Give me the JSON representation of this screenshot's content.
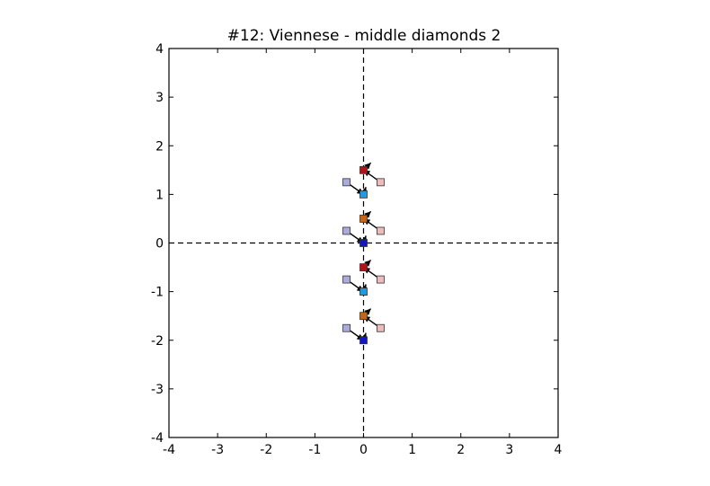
{
  "chart_data": {
    "type": "scatter",
    "title": "#12: Viennese - middle diamonds 2",
    "xlabel": "",
    "ylabel": "",
    "xlim": [
      -4,
      4
    ],
    "ylim": [
      -4,
      4
    ],
    "xticks": [
      -4,
      -3,
      -2,
      -1,
      0,
      1,
      2,
      3,
      4
    ],
    "yticks": [
      -4,
      -3,
      -2,
      -1,
      0,
      1,
      2,
      3,
      4
    ],
    "xtick_labels": [
      "-4",
      "-3",
      "-2",
      "-1",
      "0",
      "1",
      "2",
      "3",
      "4"
    ],
    "ytick_labels": [
      "-4",
      "-3",
      "-2",
      "-1",
      "0",
      "1",
      "2",
      "3",
      "4"
    ],
    "grid": false,
    "reference_lines": {
      "x": 0,
      "y": 0,
      "style": "dashed"
    },
    "points": [
      {
        "x": 0.0,
        "y": 1.5,
        "color": "#b01515"
      },
      {
        "x": 0.0,
        "y": 1.0,
        "color": "#1e9be0"
      },
      {
        "x": 0.0,
        "y": 0.5,
        "color": "#c86414"
      },
      {
        "x": 0.0,
        "y": 0.0,
        "color": "#1414c8"
      },
      {
        "x": 0.0,
        "y": -0.5,
        "color": "#b01515"
      },
      {
        "x": 0.0,
        "y": -1.0,
        "color": "#1e9be0"
      },
      {
        "x": 0.0,
        "y": -1.5,
        "color": "#c86414"
      },
      {
        "x": 0.0,
        "y": -2.0,
        "color": "#1414c8"
      },
      {
        "x": -0.35,
        "y": 1.25,
        "color": "#aaaadd"
      },
      {
        "x": 0.35,
        "y": 1.25,
        "color": "#eebbbb"
      },
      {
        "x": -0.35,
        "y": 0.25,
        "color": "#aaaadd"
      },
      {
        "x": 0.35,
        "y": 0.25,
        "color": "#eebbbb"
      },
      {
        "x": -0.35,
        "y": -0.75,
        "color": "#aaaadd"
      },
      {
        "x": 0.35,
        "y": -0.75,
        "color": "#eebbbb"
      },
      {
        "x": -0.35,
        "y": -1.75,
        "color": "#aaaadd"
      },
      {
        "x": 0.35,
        "y": -1.75,
        "color": "#eebbbb"
      }
    ],
    "arrows": [
      {
        "x1": -0.35,
        "y1": 1.25,
        "x2": 0.0,
        "y2": 1.0
      },
      {
        "x1": 0.35,
        "y1": 1.25,
        "x2": 0.0,
        "y2": 1.5
      },
      {
        "x1": 0.0,
        "y1": 1.0,
        "x2": 0.05,
        "y2": 1.15
      },
      {
        "x1": 0.0,
        "y1": 1.5,
        "x2": 0.15,
        "y2": 1.65
      },
      {
        "x1": -0.35,
        "y1": 0.25,
        "x2": 0.0,
        "y2": 0.0
      },
      {
        "x1": 0.35,
        "y1": 0.25,
        "x2": 0.0,
        "y2": 0.5
      },
      {
        "x1": 0.0,
        "y1": 0.0,
        "x2": 0.05,
        "y2": 0.15
      },
      {
        "x1": 0.0,
        "y1": 0.5,
        "x2": 0.15,
        "y2": 0.65
      },
      {
        "x1": -0.35,
        "y1": -0.75,
        "x2": 0.0,
        "y2": -1.0
      },
      {
        "x1": 0.35,
        "y1": -0.75,
        "x2": 0.0,
        "y2": -0.5
      },
      {
        "x1": 0.0,
        "y1": -1.0,
        "x2": 0.05,
        "y2": -0.85
      },
      {
        "x1": 0.0,
        "y1": -0.5,
        "x2": 0.15,
        "y2": -0.35
      },
      {
        "x1": -0.35,
        "y1": -1.75,
        "x2": 0.0,
        "y2": -2.0
      },
      {
        "x1": 0.35,
        "y1": -1.75,
        "x2": 0.0,
        "y2": -1.5
      },
      {
        "x1": 0.0,
        "y1": -2.0,
        "x2": 0.05,
        "y2": -1.85
      },
      {
        "x1": 0.0,
        "y1": -1.5,
        "x2": 0.15,
        "y2": -1.35
      }
    ]
  }
}
